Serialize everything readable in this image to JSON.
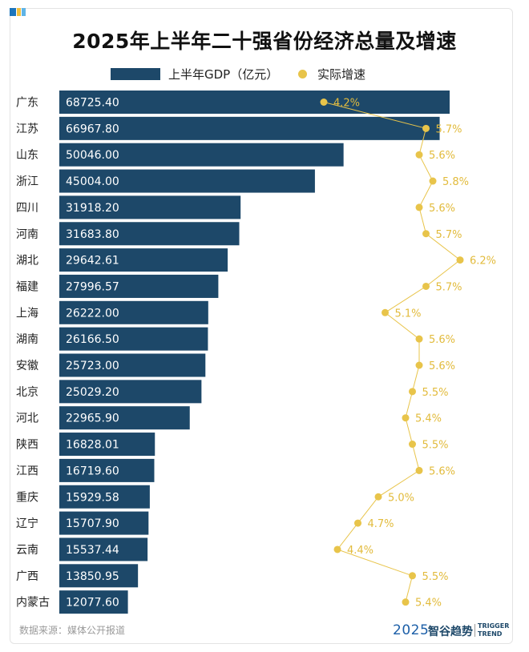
{
  "title": "2025年上半年二十强省份经济总量及增速",
  "legend": {
    "bar_label": "上半年GDP（亿元）",
    "dot_label": "实际增速"
  },
  "colors": {
    "bar": "#1d4869",
    "dot": "#e8c44a",
    "label": "#e2bb3c",
    "line": "#e8c44a"
  },
  "source": "数据来源：媒体公开报道",
  "brand": {
    "year": "2025",
    "name": "智谷趋势",
    "en_line1": "TRIGGER",
    "en_line2": "TREND"
  },
  "chart_data": {
    "type": "bar",
    "categories": [
      "广东",
      "江苏",
      "山东",
      "浙江",
      "四川",
      "河南",
      "湖北",
      "福建",
      "上海",
      "湖南",
      "安徽",
      "北京",
      "河北",
      "陕西",
      "江西",
      "重庆",
      "辽宁",
      "云南",
      "广西",
      "内蒙古"
    ],
    "series": [
      {
        "name": "上半年GDP（亿元）",
        "values": [
          68725.4,
          66967.8,
          50046.0,
          45004.0,
          31918.2,
          31683.8,
          29642.61,
          27996.57,
          26222.0,
          26166.5,
          25723.0,
          25029.2,
          22965.9,
          16828.01,
          16719.6,
          15929.58,
          15707.9,
          15537.44,
          13850.95,
          12077.6
        ]
      },
      {
        "name": "实际增速",
        "values": [
          4.2,
          5.7,
          5.6,
          5.8,
          5.6,
          5.7,
          6.2,
          5.7,
          5.1,
          5.6,
          5.6,
          5.5,
          5.4,
          5.5,
          5.6,
          5.0,
          4.7,
          4.4,
          5.5,
          5.4
        ]
      }
    ],
    "bar_value_labels": [
      "68725.40",
      "66967.80",
      "50046.00",
      "45004.00",
      "31918.20",
      "31683.80",
      "29642.61",
      "27996.57",
      "26222.00",
      "26166.50",
      "25723.00",
      "25029.20",
      "22965.90",
      "16828.01",
      "16719.60",
      "15929.58",
      "15707.90",
      "15537.44",
      "13850.95",
      "12077.60"
    ],
    "growth_labels": [
      "4.2%",
      "5.7%",
      "5.6%",
      "5.8%",
      "5.6%",
      "5.7%",
      "6.2%",
      "5.7%",
      "5.1%",
      "5.6%",
      "5.6%",
      "5.5%",
      "5.4%",
      "5.5%",
      "5.6%",
      "5.0%",
      "4.7%",
      "4.4%",
      "5.5%",
      "5.4%"
    ],
    "orientation": "horizontal",
    "grid": false,
    "legend_position": "top-center"
  }
}
